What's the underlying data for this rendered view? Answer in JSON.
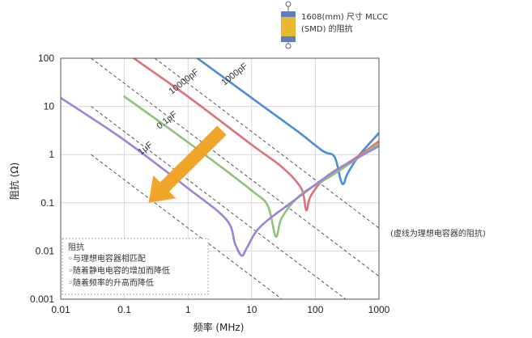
{
  "chart_data": {
    "type": "line",
    "xlabel": "频率 (MHz)",
    "ylabel": "阻抗 (Ω)",
    "xscale": "log",
    "yscale": "log",
    "xlim": [
      0.01,
      1000
    ],
    "ylim": [
      0.001,
      100
    ],
    "x_ticks": [
      "0.01",
      "0.1",
      "1",
      "10",
      "100",
      "1000"
    ],
    "y_ticks": [
      "100",
      "10",
      "1",
      "0.1",
      "0.01",
      "0.001"
    ],
    "grid": true,
    "series": [
      {
        "name": "1000pF",
        "color": "#4a8fd4",
        "points": [
          [
            1.4,
            100
          ],
          [
            10,
            15
          ],
          [
            50,
            3.2
          ],
          [
            130,
            1.2
          ],
          [
            200,
            0.9
          ],
          [
            250,
            0.3
          ],
          [
            280,
            0.25
          ],
          [
            320,
            0.4
          ],
          [
            500,
            1.0
          ],
          [
            1000,
            2.8
          ]
        ]
      },
      {
        "name": "10000pF",
        "color": "#e07078",
        "points": [
          [
            0.14,
            100
          ],
          [
            1,
            16
          ],
          [
            10,
            1.6
          ],
          [
            30,
            0.55
          ],
          [
            60,
            0.2
          ],
          [
            72,
            0.07
          ],
          [
            85,
            0.14
          ],
          [
            150,
            0.35
          ],
          [
            400,
            0.8
          ],
          [
            1000,
            1.9
          ]
        ]
      },
      {
        "name": "0.1μF",
        "color": "#8fc37a",
        "points": [
          [
            0.1,
            16
          ],
          [
            1,
            1.8
          ],
          [
            10,
            0.18
          ],
          [
            18,
            0.085
          ],
          [
            24,
            0.02
          ],
          [
            30,
            0.05
          ],
          [
            60,
            0.15
          ],
          [
            200,
            0.4
          ],
          [
            1000,
            1.7
          ]
        ]
      },
      {
        "name": "1μF",
        "color": "#9b84d8",
        "points": [
          [
            0.01,
            15
          ],
          [
            0.1,
            2
          ],
          [
            1,
            0.2
          ],
          [
            4,
            0.045
          ],
          [
            5.5,
            0.014
          ],
          [
            7,
            0.008
          ],
          [
            8.5,
            0.012
          ],
          [
            14,
            0.033
          ],
          [
            50,
            0.12
          ],
          [
            200,
            0.45
          ],
          [
            1000,
            1.5
          ]
        ]
      }
    ],
    "ideal_lines": [
      {
        "points": [
          [
            0.3,
            100
          ],
          [
            1000,
            0.03
          ]
        ]
      },
      {
        "points": [
          [
            0.03,
            100
          ],
          [
            1000,
            0.003
          ]
        ]
      },
      {
        "points": [
          [
            0.03,
            10
          ],
          [
            300,
            0.001
          ]
        ]
      },
      {
        "points": [
          [
            0.03,
            1
          ],
          [
            30,
            0.001
          ]
        ]
      }
    ],
    "arrow": {
      "from": [
        3.4,
        3.2
      ],
      "to": [
        0.24,
        0.1
      ],
      "color": "#f0a020"
    }
  },
  "annotations": {
    "component_label_line1": "1608(mm) 尺寸 MLCC",
    "component_label_line2": "(SMD) 的阻抗",
    "ideal_note": "(虚线为理想电容器的阻抗)"
  },
  "legend_box": {
    "title": "阻抗",
    "items": [
      "◦与理想电容器相匹配",
      "◦随着静电电容的增加而降低",
      "◦随着频率的升高而降低"
    ]
  },
  "colors": {
    "grid": "#d8d8d8",
    "ideal_line": "#555555",
    "component_body": "#e8b830",
    "component_cap": "#5b7fc0"
  }
}
